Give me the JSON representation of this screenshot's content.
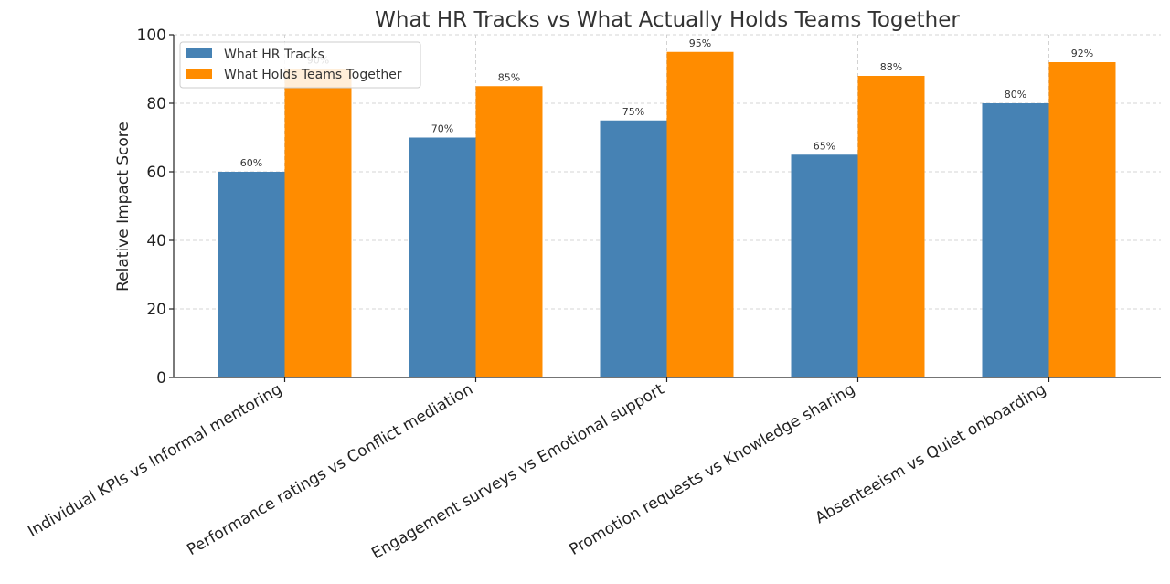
{
  "chart_data": {
    "type": "bar",
    "title": "What HR Tracks vs What Actually Holds Teams Together",
    "xlabel": "",
    "ylabel": "Relative Impact Score",
    "ylim": [
      0,
      100
    ],
    "yticks": [
      0,
      20,
      40,
      60,
      80,
      100
    ],
    "grid": true,
    "legend_position": "upper-left",
    "categories": [
      "Individual KPIs vs Informal mentoring",
      "Performance ratings vs Conflict mediation",
      "Engagement surveys vs Emotional support",
      "Promotion requests vs Knowledge sharing",
      "Absenteeism vs Quiet onboarding"
    ],
    "series": [
      {
        "name": "What HR Tracks",
        "color": "#4682b4",
        "values": [
          60,
          70,
          75,
          65,
          80
        ],
        "labels": [
          "60%",
          "70%",
          "75%",
          "65%",
          "80%"
        ]
      },
      {
        "name": "What Holds Teams Together",
        "color": "#ff8c00",
        "values": [
          90,
          85,
          95,
          88,
          92
        ],
        "labels": [
          "90%",
          "85%",
          "95%",
          "88%",
          "92%"
        ]
      }
    ]
  }
}
